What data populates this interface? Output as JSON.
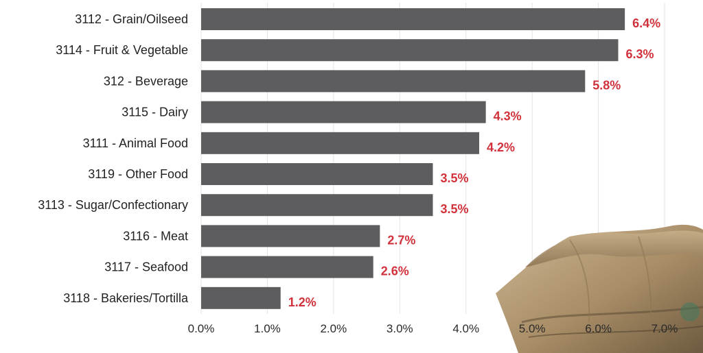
{
  "chart_data": {
    "type": "bar",
    "orientation": "horizontal",
    "categories": [
      "3112 - Grain/Oilseed",
      "3114 - Fruit & Vegetable",
      "312 - Beverage",
      "3115 - Dairy",
      "3111 - Animal Food",
      "3119 - Other Food",
      "3113 - Sugar/Confectionary",
      "3116 - Meat",
      "3117 - Seafood",
      "3118 - Bakeries/Tortilla"
    ],
    "values": [
      6.4,
      6.3,
      5.8,
      4.3,
      4.2,
      3.5,
      3.5,
      2.7,
      2.6,
      1.2
    ],
    "data_labels": [
      "6.4%",
      "6.3%",
      "5.8%",
      "4.3%",
      "4.2%",
      "3.5%",
      "3.5%",
      "2.7%",
      "2.6%",
      "1.2%"
    ],
    "x_ticks": [
      "0.0%",
      "1.0%",
      "2.0%",
      "3.0%",
      "4.0%",
      "5.0%",
      "6.0%",
      "7.0%"
    ],
    "xlim": [
      0,
      7
    ],
    "grid": "vertical",
    "colors": {
      "bar": "#5d5c5e",
      "value_label": "#d1313a",
      "gridline": "#e3e3e3"
    }
  }
}
